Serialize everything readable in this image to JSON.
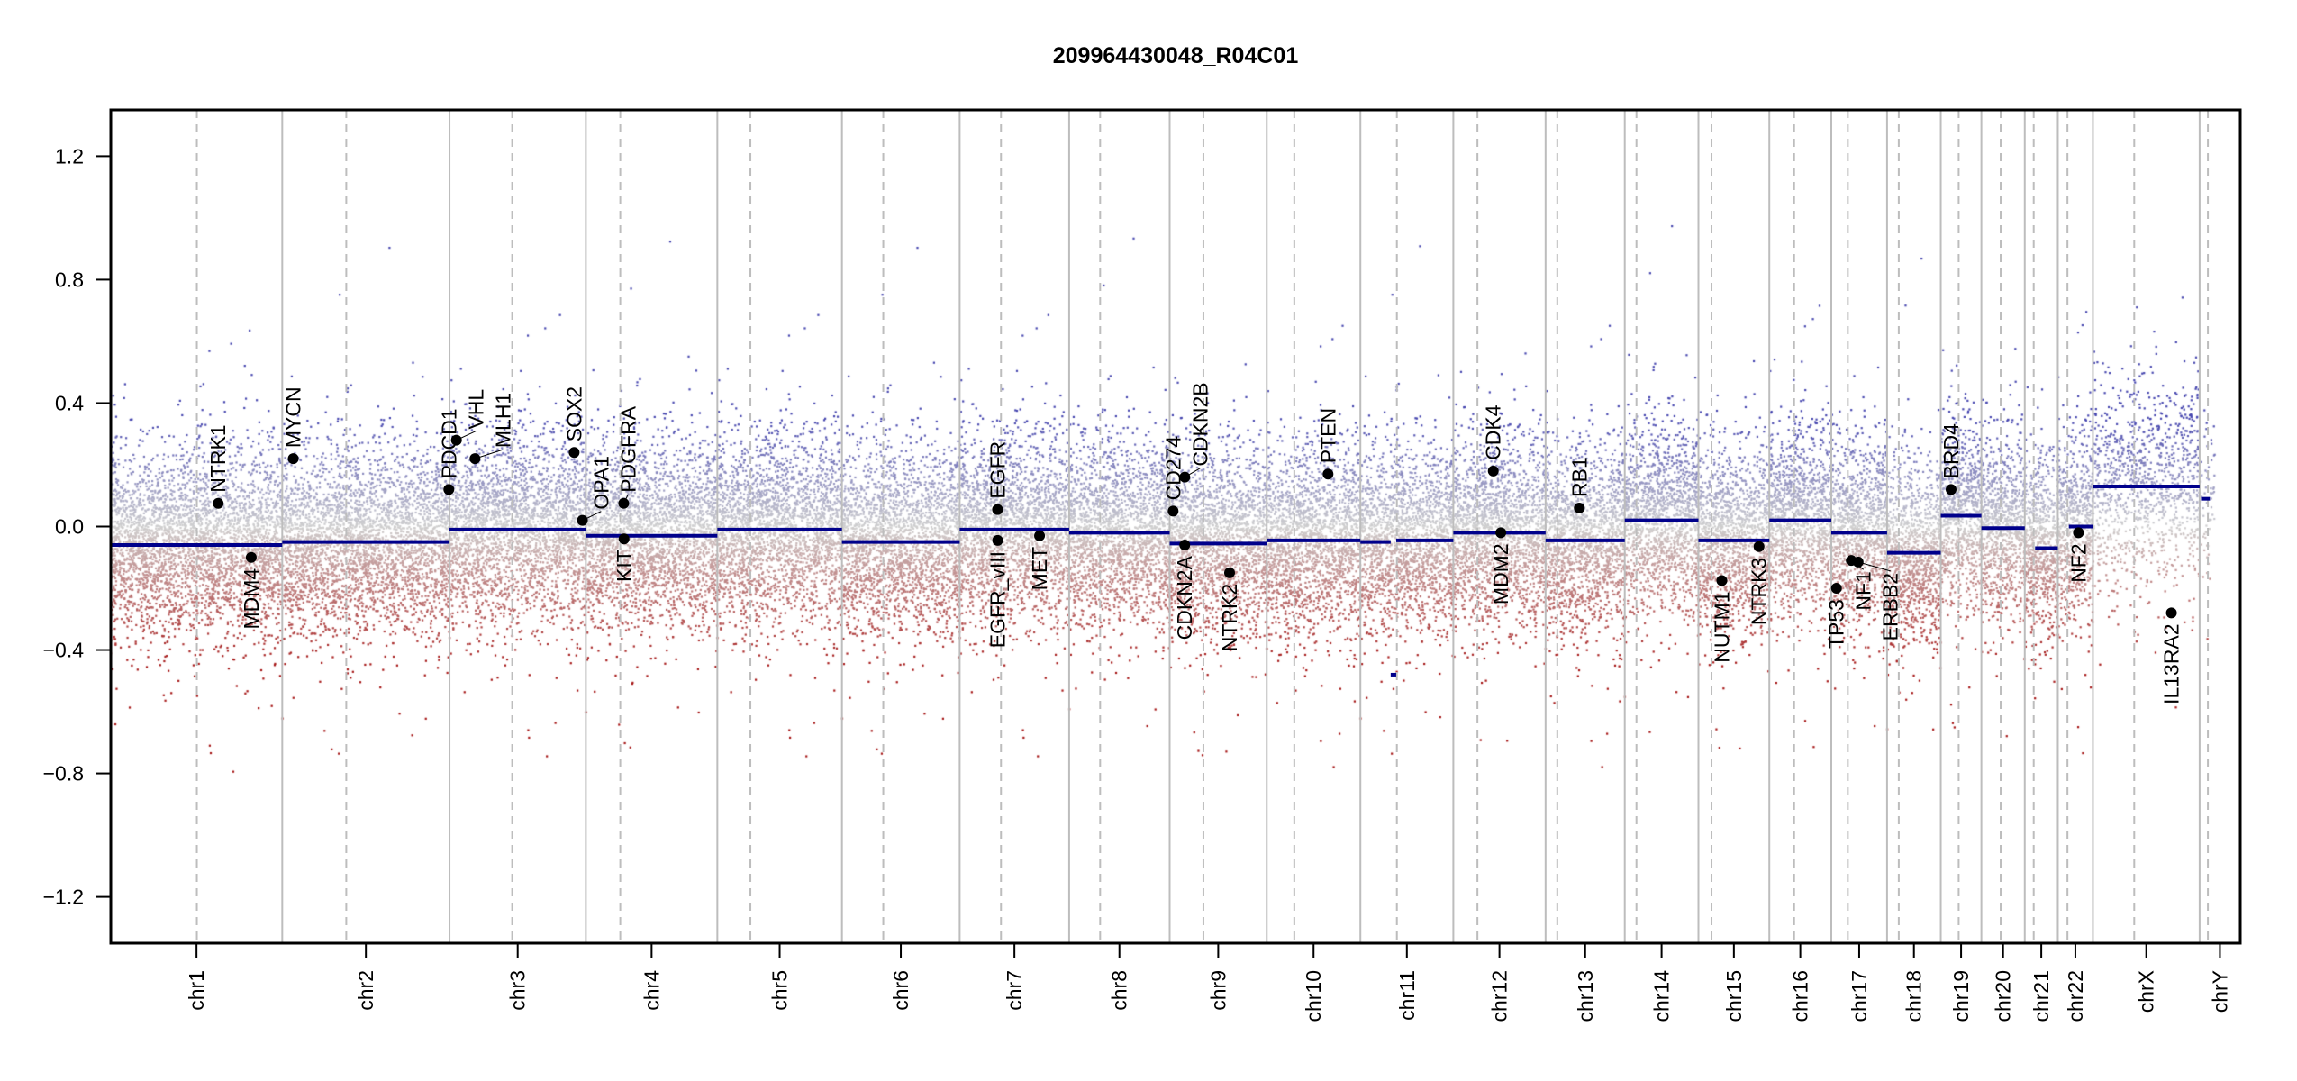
{
  "chart_data": {
    "type": "scatter",
    "title": "209964430048_R04C01",
    "xlabel": "",
    "ylabel": "",
    "ylim": [
      -1.35,
      1.35
    ],
    "yticks": [
      -1.2,
      -0.8,
      -0.4,
      0.0,
      0.4,
      0.8,
      1.2
    ],
    "ytick_labels": [
      "−1.2",
      "−0.8",
      "−0.4",
      "0.0",
      "0.4",
      "0.8",
      "1.2"
    ],
    "grid": false,
    "colors": {
      "segment": "#00008b",
      "gain": "#4a4ab0",
      "neutral": "#cfcfcf",
      "loss": "#a01818",
      "gene": "#000000",
      "boundary": "#bdbdbd",
      "centromere": "#bdbdbd"
    },
    "chromosomes": [
      {
        "name": "chr1",
        "length_mb": 249,
        "centromere_mb": 125,
        "segments": [
          {
            "start": 0,
            "end": 249,
            "mean": -0.06
          }
        ]
      },
      {
        "name": "chr2",
        "length_mb": 243,
        "centromere_mb": 93,
        "segments": [
          {
            "start": 0,
            "end": 243,
            "mean": -0.05
          }
        ]
      },
      {
        "name": "chr3",
        "length_mb": 198,
        "centromere_mb": 91,
        "segments": [
          {
            "start": 0,
            "end": 198,
            "mean": -0.01
          }
        ]
      },
      {
        "name": "chr4",
        "length_mb": 191,
        "centromere_mb": 50,
        "segments": [
          {
            "start": 0,
            "end": 191,
            "mean": -0.03
          }
        ]
      },
      {
        "name": "chr5",
        "length_mb": 181,
        "centromere_mb": 48,
        "segments": [
          {
            "start": 0,
            "end": 181,
            "mean": -0.01
          }
        ]
      },
      {
        "name": "chr6",
        "length_mb": 171,
        "centromere_mb": 60,
        "segments": [
          {
            "start": 0,
            "end": 171,
            "mean": -0.05
          }
        ]
      },
      {
        "name": "chr7",
        "length_mb": 159,
        "centromere_mb": 60,
        "segments": [
          {
            "start": 0,
            "end": 159,
            "mean": -0.01
          }
        ]
      },
      {
        "name": "chr8",
        "length_mb": 146,
        "centromere_mb": 45,
        "segments": [
          {
            "start": 0,
            "end": 146,
            "mean": -0.02
          }
        ]
      },
      {
        "name": "chr9",
        "length_mb": 141,
        "centromere_mb": 49,
        "segments": [
          {
            "start": 0,
            "end": 141,
            "mean": -0.055
          }
        ]
      },
      {
        "name": "chr10",
        "length_mb": 136,
        "centromere_mb": 40,
        "segments": [
          {
            "start": 0,
            "end": 136,
            "mean": -0.045
          }
        ]
      },
      {
        "name": "chr11",
        "length_mb": 135,
        "centromere_mb": 53,
        "segments": [
          {
            "start": 0,
            "end": 44,
            "mean": -0.05
          },
          {
            "start": 44,
            "end": 52,
            "mean": -0.48
          },
          {
            "start": 52,
            "end": 135,
            "mean": -0.045
          }
        ]
      },
      {
        "name": "chr12",
        "length_mb": 134,
        "centromere_mb": 35,
        "segments": [
          {
            "start": 0,
            "end": 134,
            "mean": -0.02
          }
        ]
      },
      {
        "name": "chr13",
        "length_mb": 115,
        "centromere_mb": 17,
        "segments": [
          {
            "start": 0,
            "end": 115,
            "mean": -0.045
          }
        ]
      },
      {
        "name": "chr14",
        "length_mb": 107,
        "centromere_mb": 17,
        "segments": [
          {
            "start": 0,
            "end": 107,
            "mean": 0.02
          }
        ]
      },
      {
        "name": "chr15",
        "length_mb": 103,
        "centromere_mb": 19,
        "segments": [
          {
            "start": 0,
            "end": 103,
            "mean": -0.045
          }
        ]
      },
      {
        "name": "chr16",
        "length_mb": 90,
        "centromere_mb": 36,
        "segments": [
          {
            "start": 0,
            "end": 90,
            "mean": 0.02
          }
        ]
      },
      {
        "name": "chr17",
        "length_mb": 81,
        "centromere_mb": 24,
        "segments": [
          {
            "start": 0,
            "end": 81,
            "mean": -0.02
          }
        ]
      },
      {
        "name": "chr18",
        "length_mb": 78,
        "centromere_mb": 17,
        "segments": [
          {
            "start": 0,
            "end": 78,
            "mean": -0.085
          }
        ]
      },
      {
        "name": "chr19",
        "length_mb": 59,
        "centromere_mb": 26,
        "segments": [
          {
            "start": 0,
            "end": 59,
            "mean": 0.035
          }
        ]
      },
      {
        "name": "chr20",
        "length_mb": 63,
        "centromere_mb": 28,
        "segments": [
          {
            "start": 0,
            "end": 63,
            "mean": -0.005
          }
        ]
      },
      {
        "name": "chr21",
        "length_mb": 48,
        "centromere_mb": 13,
        "segments": [
          {
            "start": 15,
            "end": 48,
            "mean": -0.07
          }
        ]
      },
      {
        "name": "chr22",
        "length_mb": 51,
        "centromere_mb": 14,
        "segments": [
          {
            "start": 16,
            "end": 51,
            "mean": 0.0
          }
        ]
      },
      {
        "name": "chrX",
        "length_mb": 155,
        "centromere_mb": 60,
        "segments": [
          {
            "start": 0,
            "end": 155,
            "mean": 0.13
          }
        ]
      },
      {
        "name": "chrY",
        "length_mb": 59,
        "centromere_mb": 12,
        "segments": [
          {
            "start": 2,
            "end": 15,
            "mean": 0.09
          }
        ]
      }
    ],
    "genes": [
      {
        "name": "NTRK1",
        "chr": "chr1",
        "pos_mb": 156,
        "value": 0.075
      },
      {
        "name": "MDM4",
        "chr": "chr1",
        "pos_mb": 204,
        "value": -0.1
      },
      {
        "name": "MYCN",
        "chr": "chr2",
        "pos_mb": 16,
        "value": 0.22
      },
      {
        "name": "PDCD1",
        "chr": "chr2",
        "pos_mb": 242,
        "value": 0.12
      },
      {
        "name": "VHL",
        "chr": "chr3",
        "pos_mb": 10,
        "value": 0.28
      },
      {
        "name": "MLH1",
        "chr": "chr3",
        "pos_mb": 37,
        "value": 0.22
      },
      {
        "name": "SOX2",
        "chr": "chr3",
        "pos_mb": 181,
        "value": 0.24
      },
      {
        "name": "OPA1",
        "chr": "chr3",
        "pos_mb": 193,
        "value": 0.02
      },
      {
        "name": "PDGFRA",
        "chr": "chr4",
        "pos_mb": 55,
        "value": 0.075
      },
      {
        "name": "KIT",
        "chr": "chr4",
        "pos_mb": 55.5,
        "value": -0.04
      },
      {
        "name": "EGFR",
        "chr": "chr7",
        "pos_mb": 55,
        "value": 0.055
      },
      {
        "name": "EGFR_vIII",
        "chr": "chr7",
        "pos_mb": 55.2,
        "value": -0.045
      },
      {
        "name": "MET",
        "chr": "chr7",
        "pos_mb": 116,
        "value": -0.03
      },
      {
        "name": "CD274",
        "chr": "chr9",
        "pos_mb": 5,
        "value": 0.05
      },
      {
        "name": "CDKN2B",
        "chr": "chr9",
        "pos_mb": 22,
        "value": 0.16
      },
      {
        "name": "CDKN2A",
        "chr": "chr9",
        "pos_mb": 21.9,
        "value": -0.06
      },
      {
        "name": "NTRK2",
        "chr": "chr9",
        "pos_mb": 87,
        "value": -0.15
      },
      {
        "name": "PTEN",
        "chr": "chr10",
        "pos_mb": 89,
        "value": 0.17
      },
      {
        "name": "CDK4",
        "chr": "chr12",
        "pos_mb": 58,
        "value": 0.18
      },
      {
        "name": "MDM2",
        "chr": "chr12",
        "pos_mb": 69,
        "value": -0.02
      },
      {
        "name": "RB1",
        "chr": "chr13",
        "pos_mb": 49,
        "value": 0.06
      },
      {
        "name": "NUTM1",
        "chr": "chr15",
        "pos_mb": 34,
        "value": -0.175
      },
      {
        "name": "NTRK3",
        "chr": "chr15",
        "pos_mb": 88,
        "value": -0.065
      },
      {
        "name": "TP53",
        "chr": "chr17",
        "pos_mb": 7.5,
        "value": -0.2
      },
      {
        "name": "NF1",
        "chr": "chr17",
        "pos_mb": 29,
        "value": -0.11
      },
      {
        "name": "ERBB2",
        "chr": "chr17",
        "pos_mb": 39,
        "value": -0.115
      },
      {
        "name": "BRD4",
        "chr": "chr19",
        "pos_mb": 15,
        "value": 0.12
      },
      {
        "name": "NF2",
        "chr": "chr22",
        "pos_mb": 30,
        "value": -0.02
      },
      {
        "name": "IL13RA2",
        "chr": "chrX",
        "pos_mb": 114,
        "value": -0.28
      }
    ]
  }
}
